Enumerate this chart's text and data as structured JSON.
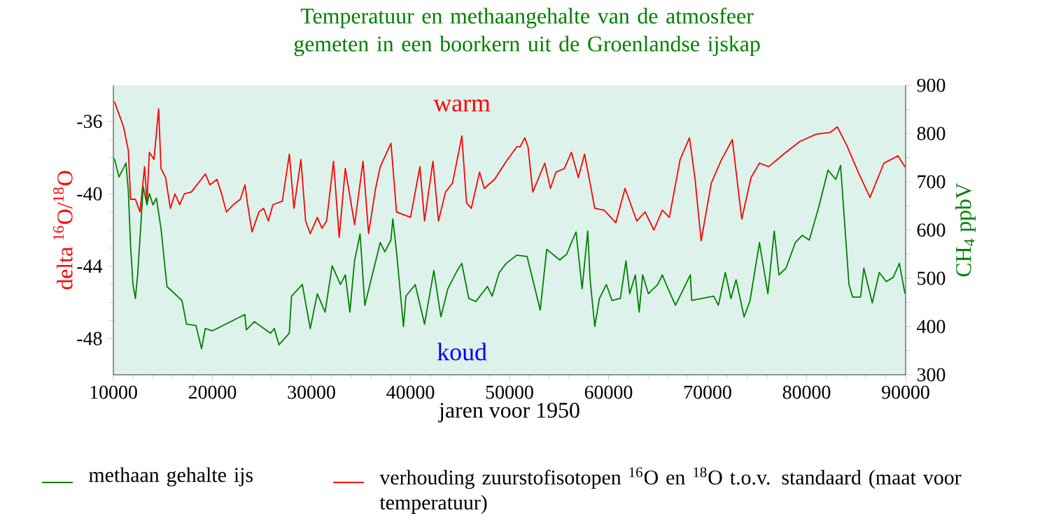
{
  "chart_data": {
    "type": "line",
    "title": "Temperatuur en methaangehalte van de atmosfeer gemeten in een boorkern uit de Groenlandse ijskap",
    "xlabel": "jaren voor 1950",
    "ylabel": "delta $^{16}$O/$^{18}$O",
    "y2label": "CH$_{4}$ ppbV",
    "annotations": [
      "warm",
      "koud"
    ],
    "xlim": [
      10000,
      90000
    ],
    "xticks": [
      10000,
      20000,
      30000,
      40000,
      50000,
      60000,
      70000,
      80000,
      90000
    ],
    "ylim": [
      -50,
      -34
    ],
    "yticks": [
      -48,
      -44,
      -40,
      -36
    ],
    "y2lim": [
      300,
      900
    ],
    "y2ticks": [
      300,
      400,
      500,
      600,
      700,
      800,
      900
    ],
    "grid": false,
    "legend": "bottom",
    "marker": "none",
    "line_style": "solid",
    "series": [
      {
        "name": "methaan gehalte ijs",
        "color": "#008000",
        "axis": "y2",
        "x": [
          10100,
          10570,
          11270,
          11510,
          11740,
          11980,
          12220,
          12450,
          12780,
          13010,
          13390,
          13630,
          14000,
          14340,
          14810,
          15410,
          16920,
          17390,
          18340,
          18900,
          19280,
          19990,
          23280,
          23420,
          24230,
          25870,
          26250,
          26720,
          27760,
          27990,
          29080,
          29410,
          29880,
          30590,
          31380,
          32090,
          32930,
          33420,
          33880,
          34350,
          34910,
          35390,
          36140,
          36950,
          37410,
          38020,
          38220,
          38590,
          39290,
          39540,
          40480,
          41420,
          42360,
          43070,
          43770,
          44720,
          45180,
          45890,
          46600,
          47770,
          48250,
          48960,
          49670,
          50740,
          51780,
          52350,
          53100,
          53760,
          55070,
          55780,
          56250,
          56720,
          57330,
          57900,
          58140,
          58610,
          59080,
          59780,
          60350,
          61190,
          61760,
          62140,
          62700,
          63090,
          63450,
          64020,
          64970,
          65430,
          65910,
          66760,
          68260,
          68400,
          70620,
          71090,
          71790,
          72360,
          72880,
          73690,
          74290,
          75240,
          76090,
          76730,
          77210,
          77920,
          78860,
          79560,
          80270,
          81220,
          82160,
          82950,
          83430,
          84280,
          84650,
          85450,
          85780,
          86630,
          87340,
          88040,
          88750,
          89370,
          89930
        ],
        "values": [
          748,
          710,
          739,
          681,
          565,
          487,
          458,
          507,
          613,
          690,
          652,
          676,
          652,
          666,
          603,
          483,
          454,
          405,
          402,
          354,
          396,
          391,
          425,
          393,
          410,
          386,
          396,
          362,
          386,
          463,
          487,
          449,
          396,
          468,
          430,
          526,
          487,
          507,
          430,
          536,
          592,
          444,
          507,
          574,
          555,
          579,
          623,
          555,
          400,
          463,
          487,
          405,
          516,
          420,
          478,
          516,
          531,
          458,
          452,
          483,
          463,
          512,
          531,
          548,
          545,
          497,
          434,
          560,
          538,
          550,
          574,
          596,
          478,
          598,
          497,
          400,
          458,
          487,
          454,
          458,
          536,
          468,
          507,
          430,
          507,
          468,
          487,
          507,
          483,
          444,
          507,
          454,
          463,
          444,
          512,
          458,
          497,
          420,
          454,
          574,
          468,
          598,
          507,
          521,
          574,
          589,
          579,
          647,
          724,
          705,
          734,
          487,
          461,
          461,
          521,
          449,
          512,
          493,
          502,
          531,
          468
        ]
      },
      {
        "name": "verhouding zuurstofisotopen $^{16}$O en $^{18}$O t.o.v. standaard (maat voor temperatuur)",
        "color": "#ff0000",
        "axis": "y",
        "x": [
          10100,
          10570,
          11030,
          11510,
          11740,
          12220,
          12690,
          13150,
          13390,
          13630,
          14100,
          14570,
          14810,
          15270,
          15750,
          16220,
          16690,
          17170,
          17870,
          18580,
          19290,
          19750,
          20460,
          20930,
          21410,
          22110,
          22820,
          23290,
          23530,
          24000,
          24700,
          25170,
          25650,
          26110,
          27060,
          27770,
          28230,
          28940,
          29410,
          29880,
          30590,
          31060,
          31530,
          32230,
          32800,
          33420,
          34360,
          35210,
          35770,
          36480,
          36950,
          38030,
          38590,
          39540,
          40010,
          40950,
          41420,
          42270,
          42830,
          43540,
          44250,
          45190,
          45660,
          46140,
          46980,
          47450,
          48490,
          49670,
          50740,
          51080,
          51540,
          51870,
          52350,
          52960,
          53560,
          54130,
          54690,
          55540,
          56250,
          56950,
          57580,
          58610,
          59560,
          60730,
          61670,
          62850,
          63690,
          64580,
          65430,
          66140,
          67230,
          68170,
          68740,
          69350,
          70380,
          71330,
          72500,
          73450,
          74390,
          75240,
          76170,
          77920,
          79330,
          80970,
          82390,
          83100,
          84040,
          85210,
          86400,
          87810,
          89230,
          89930
        ],
        "values": [
          -34.9,
          -35.6,
          -36.3,
          -37.6,
          -40.3,
          -40.3,
          -41.0,
          -38.5,
          -40.5,
          -37.7,
          -38.1,
          -35.3,
          -38.6,
          -39.1,
          -40.8,
          -40.0,
          -40.6,
          -40.0,
          -39.9,
          -39.4,
          -38.9,
          -39.5,
          -39.2,
          -40.0,
          -41.0,
          -40.6,
          -40.3,
          -39.5,
          -40.5,
          -42.1,
          -41.0,
          -40.8,
          -41.5,
          -40.6,
          -40.4,
          -37.8,
          -40.8,
          -38.1,
          -41.5,
          -42.2,
          -41.3,
          -41.9,
          -41.5,
          -38.2,
          -42.4,
          -38.6,
          -41.7,
          -38.2,
          -42.2,
          -39.7,
          -38.5,
          -37.2,
          -41.0,
          -41.2,
          -41.3,
          -38.5,
          -41.5,
          -38.2,
          -41.5,
          -39.9,
          -39.4,
          -36.8,
          -40.5,
          -40.8,
          -38.8,
          -39.7,
          -39.2,
          -38.2,
          -37.4,
          -37.4,
          -36.9,
          -37.4,
          -39.9,
          -39.1,
          -38.3,
          -39.7,
          -38.8,
          -38.6,
          -37.7,
          -39.1,
          -37.8,
          -40.8,
          -40.9,
          -41.6,
          -39.7,
          -41.5,
          -41.0,
          -42.0,
          -40.9,
          -41.3,
          -38.1,
          -36.9,
          -39.2,
          -42.6,
          -39.4,
          -38.2,
          -37.0,
          -41.4,
          -39.1,
          -38.3,
          -38.5,
          -37.7,
          -37.1,
          -36.7,
          -36.6,
          -36.3,
          -37.3,
          -38.8,
          -40.2,
          -38.3,
          -37.9,
          -38.5
        ]
      }
    ]
  }
}
